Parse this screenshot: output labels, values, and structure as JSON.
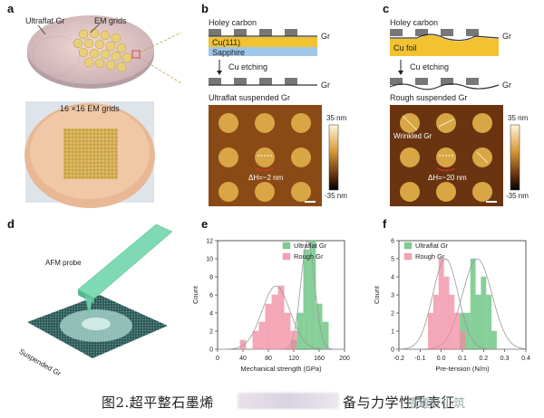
{
  "panels": {
    "a": {
      "label": "a",
      "text_ultraflat": "Ultraflat Gr",
      "text_em_grids": "EM grids",
      "text_grid_count": "16 ×16 EM grids"
    },
    "b": {
      "label": "b",
      "holey_carbon": "Holey carbon",
      "gr": "Gr",
      "cu111": "Cu(111)",
      "sapphire": "Sapphire",
      "cu_etching": "Cu etching",
      "gr2": "Gr",
      "title": "Ultraflat suspended Gr",
      "scale_top": "35 nm",
      "scale_bottom": "-35 nm",
      "delta_h": "ΔH=~2 nm"
    },
    "c": {
      "label": "c",
      "holey_carbon": "Holey carbon",
      "gr": "Gr",
      "cu_foil": "Cu foil",
      "cu_etching": "Cu etching",
      "gr2": "Gr",
      "title": "Rough suspended Gr",
      "wrinkled": "Wrinkled Gr",
      "scale_top": "35 nm",
      "scale_bottom": "-35 nm",
      "delta_h": "ΔH=~20 nm"
    },
    "d": {
      "label": "d",
      "afm_probe": "AFM probe",
      "suspended": "Suspended Gr"
    }
  },
  "colors": {
    "ultraflat": "#5fbf78",
    "rough": "#f08aa0",
    "cu": "#f2c230",
    "sapphire": "#9ec7e8",
    "carbon": "#777777",
    "probe": "#7fd9b4"
  },
  "chart_data": [
    {
      "id": "e",
      "label": "e",
      "type": "bar",
      "xlabel": "Mechanical strength (GPa)",
      "ylabel": "Count",
      "xlim": [
        0,
        200
      ],
      "ylim": [
        0,
        12
      ],
      "xticks": [
        0,
        40,
        80,
        120,
        160,
        200
      ],
      "yticks": [
        0,
        2,
        4,
        6,
        8,
        10,
        12
      ],
      "bin_width": 10,
      "legend": [
        "Ultraflat Gr",
        "Rough Gr"
      ],
      "legend_position": "top-right",
      "series": [
        {
          "name": "Ultraflat Gr",
          "x": [
            120,
            130,
            140,
            150,
            160,
            170
          ],
          "values": [
            1,
            4,
            11,
            12,
            5,
            3
          ],
          "fit_mean": 142,
          "fit_sd": 11,
          "fit_peak": 12
        },
        {
          "name": "Rough Gr",
          "x": [
            40,
            60,
            70,
            80,
            90,
            100,
            110,
            120
          ],
          "values": [
            1,
            2,
            3,
            5,
            6,
            7,
            4,
            2
          ],
          "fit_mean": 92,
          "fit_sd": 22,
          "fit_peak": 7
        }
      ]
    },
    {
      "id": "f",
      "label": "f",
      "type": "bar",
      "xlabel": "Pre-tension (N/m)",
      "ylabel": "Count",
      "xlim": [
        -0.2,
        0.4
      ],
      "ylim": [
        0,
        6
      ],
      "xticks": [
        -0.2,
        -0.1,
        0.0,
        0.1,
        0.2,
        0.3,
        0.4
      ],
      "xtick_labels": [
        "-0.2",
        "-0.1",
        "0.0",
        "0.1",
        "0.2",
        "0.3",
        "0.4"
      ],
      "yticks": [
        0,
        1,
        2,
        3,
        4,
        5,
        6
      ],
      "bin_width": 0.025,
      "legend": [
        "Ultraflat Gr",
        "Rough Gr"
      ],
      "legend_position": "top-left",
      "series": [
        {
          "name": "Ultraflat Gr",
          "x": [
            0.1,
            0.125,
            0.15,
            0.175,
            0.2,
            0.225,
            0.25
          ],
          "values": [
            2,
            2,
            5,
            3,
            4,
            3,
            1
          ],
          "fit_mean": 0.17,
          "fit_sd": 0.07,
          "fit_peak": 5
        },
        {
          "name": "Rough Gr",
          "x": [
            -0.05,
            -0.025,
            0.0,
            0.025,
            0.05,
            0.075,
            0.1
          ],
          "values": [
            2,
            3,
            5,
            4,
            3,
            2,
            1
          ],
          "fit_mean": 0.02,
          "fit_sd": 0.06,
          "fit_peak": 5
        }
      ]
    }
  ],
  "caption": {
    "main": "图2.超平整石墨烯",
    "rest": "备与力学性质表征",
    "watermark": "悟道轩小筑"
  }
}
